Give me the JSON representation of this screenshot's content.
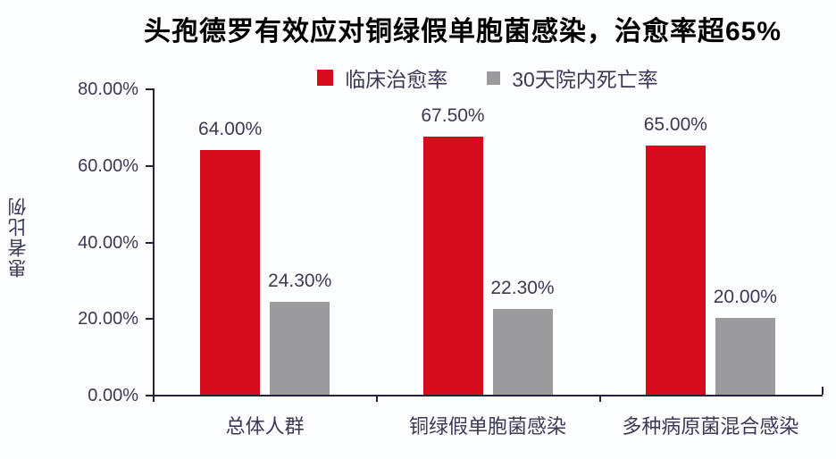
{
  "chart_data": {
    "type": "bar",
    "title": "头孢德罗有效应对铜绿假单胞菌感染，治愈率超65%",
    "ylabel": "患者比例",
    "xlabel": "",
    "categories": [
      "总体人群",
      "铜绿假单胞菌感染",
      "多种病原菌混合感染"
    ],
    "series": [
      {
        "key": "clinical-cure-rate",
        "name": "临床治愈率",
        "color": "#d70b1e",
        "values": [
          64.0,
          67.5,
          65.0
        ],
        "labels": [
          "64.00%",
          "67.50%",
          "65.00%"
        ]
      },
      {
        "key": "mortality-30day",
        "name": "30天院内死亡率",
        "color": "#9b9b9d",
        "values": [
          24.3,
          22.3,
          20.0
        ],
        "labels": [
          "24.30%",
          "22.30%",
          "20.00%"
        ]
      }
    ],
    "ylim": [
      0,
      80
    ],
    "yticks": [
      {
        "value": 0,
        "label": "0.00%"
      },
      {
        "value": 20,
        "label": "20.00%"
      },
      {
        "value": 40,
        "label": "40.00%"
      },
      {
        "value": 60,
        "label": "60.00%"
      },
      {
        "value": 80,
        "label": "80.00%"
      }
    ],
    "grid": false,
    "legend_position": "top-center",
    "colors": {
      "background": "#fbfdff",
      "title_text": "#000000",
      "label_text": "#3a3a54",
      "axis": "#23233a"
    }
  }
}
